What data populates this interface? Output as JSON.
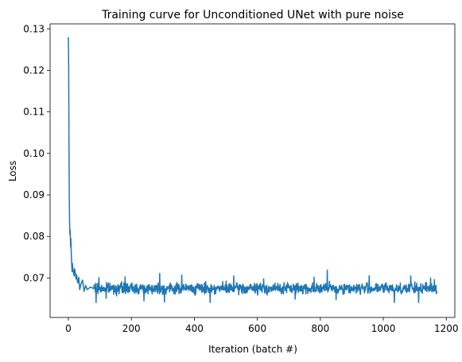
{
  "chart_data": {
    "type": "line",
    "title": "Training curve for Unconditioned UNet with pure noise",
    "xlabel": "Iteration (batch #)",
    "ylabel": "Loss",
    "xlim": [
      -58,
      1227
    ],
    "ylim": [
      0.0605,
      0.1312
    ],
    "xticks": [
      0,
      200,
      400,
      600,
      800,
      1000,
      1200
    ],
    "yticks": [
      0.07,
      0.08,
      0.09,
      0.1,
      0.11,
      0.12,
      0.13
    ],
    "ytick_labels": [
      "0.07",
      "0.08",
      "0.09",
      "0.10",
      "0.11",
      "0.12",
      "0.13"
    ],
    "grid": false,
    "series": [
      {
        "color": "#1f77b4",
        "x_start": 0,
        "x_end": 1170,
        "points": [
          [
            0,
            0.128
          ],
          [
            1,
            0.121
          ],
          [
            2,
            0.101
          ],
          [
            3,
            0.089
          ],
          [
            4,
            0.083
          ],
          [
            5,
            0.0805
          ],
          [
            6,
            0.0815
          ],
          [
            7,
            0.0775
          ],
          [
            8,
            0.0795
          ],
          [
            9,
            0.0765
          ],
          [
            10,
            0.0745
          ],
          [
            11,
            0.0725
          ],
          [
            12,
            0.0715
          ],
          [
            13,
            0.0735
          ],
          [
            14,
            0.0725
          ],
          [
            16,
            0.0715
          ],
          [
            18,
            0.0705
          ],
          [
            20,
            0.0722
          ],
          [
            22,
            0.0712
          ],
          [
            24,
            0.0698
          ],
          [
            26,
            0.0708
          ],
          [
            28,
            0.0695
          ],
          [
            30,
            0.0688
          ],
          [
            33,
            0.0702
          ],
          [
            36,
            0.0672
          ],
          [
            40,
            0.0685
          ],
          [
            45,
            0.0695
          ],
          [
            50,
            0.0668
          ],
          [
            55,
            0.0682
          ],
          [
            60,
            0.0672
          ],
          [
            70,
            0.0678
          ],
          [
            80,
            0.0675
          ]
        ],
        "baseline": 0.0675,
        "noise_amplitude": 0.0012,
        "spikes": [
          [
            56,
            0.0701
          ],
          [
            63,
            0.0651
          ],
          [
            88,
            0.0641
          ],
          [
            97,
            0.0701
          ],
          [
            120,
            0.0651
          ],
          [
            180,
            0.0703
          ],
          [
            240,
            0.0645
          ],
          [
            290,
            0.0711
          ],
          [
            305,
            0.0642
          ],
          [
            360,
            0.0707
          ],
          [
            450,
            0.0641
          ],
          [
            525,
            0.0705
          ],
          [
            620,
            0.0698
          ],
          [
            720,
            0.0649
          ],
          [
            780,
            0.0702
          ],
          [
            822,
            0.0719
          ],
          [
            850,
            0.0648
          ],
          [
            955,
            0.0705
          ],
          [
            1035,
            0.0641
          ],
          [
            1087,
            0.0705
          ],
          [
            1112,
            0.0641
          ],
          [
            1150,
            0.07
          ],
          [
            1162,
            0.0696
          ],
          [
            1170,
            0.0664
          ]
        ]
      }
    ]
  }
}
